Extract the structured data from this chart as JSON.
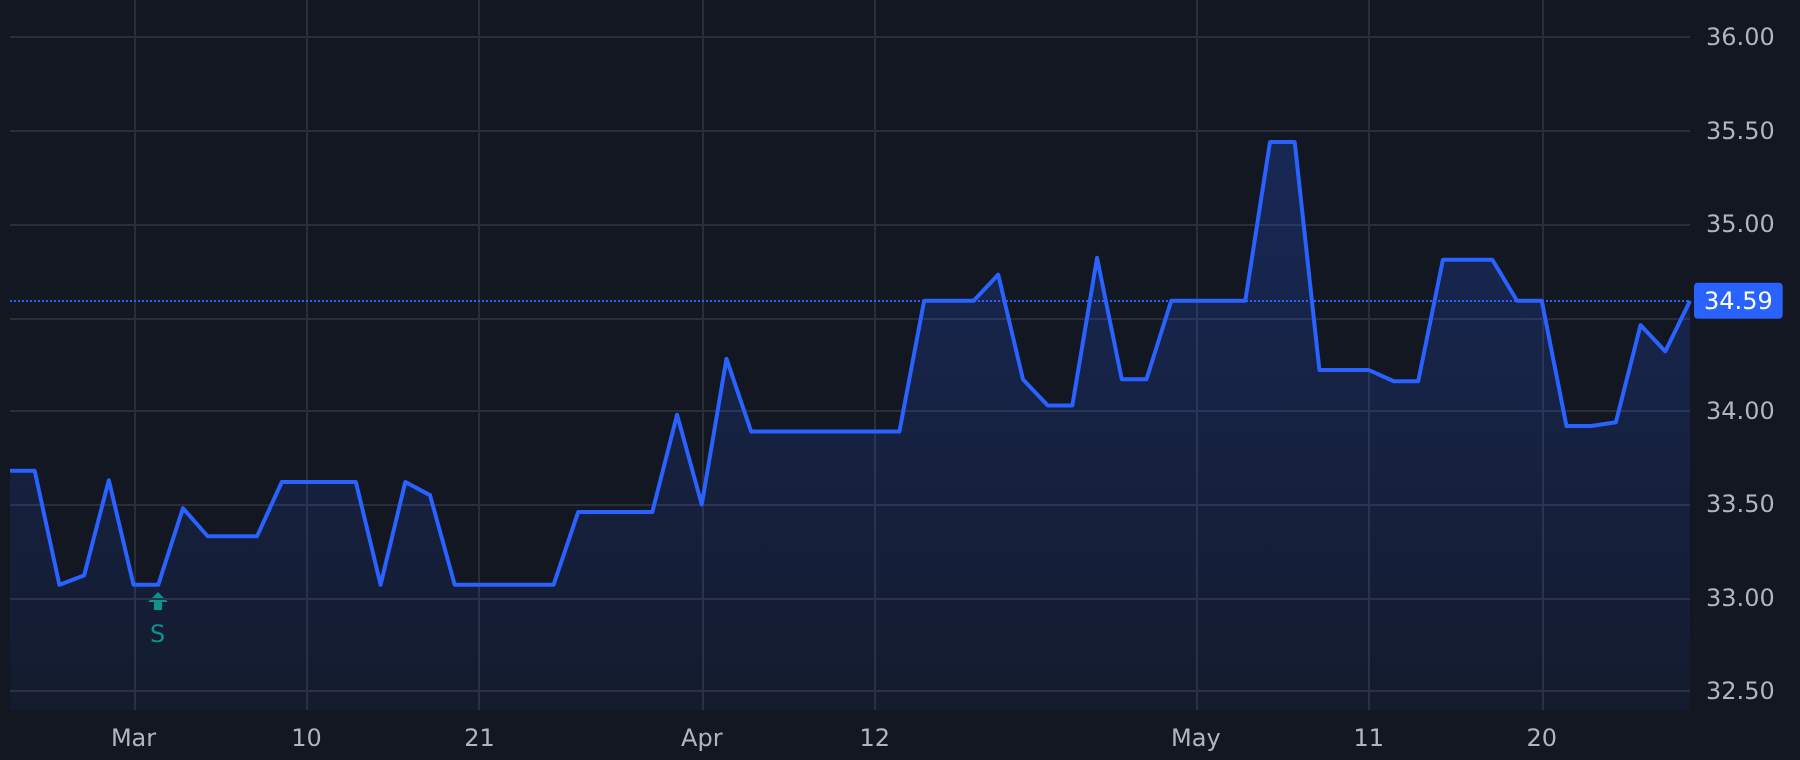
{
  "chart_data": {
    "type": "area",
    "categories": [
      null,
      null,
      null,
      null,
      null,
      "Mar",
      null,
      null,
      null,
      null,
      null,
      null,
      "10",
      null,
      null,
      null,
      null,
      null,
      null,
      "21",
      null,
      null,
      null,
      null,
      null,
      null,
      null,
      null,
      "Apr",
      null,
      null,
      null,
      null,
      null,
      null,
      "12",
      null,
      null,
      null,
      null,
      null,
      null,
      null,
      null,
      null,
      null,
      null,
      null,
      "May",
      null,
      null,
      null,
      null,
      null,
      null,
      "11",
      null,
      null,
      null,
      null,
      null,
      null,
      "20",
      null,
      null,
      null,
      null,
      null,
      null
    ],
    "series": [
      {
        "color": "#2962ff",
        "values": [
          33.68,
          33.68,
          33.07,
          33.12,
          33.63,
          33.07,
          33.07,
          33.48,
          33.33,
          33.33,
          33.33,
          33.62,
          33.62,
          33.62,
          33.62,
          33.07,
          33.62,
          33.55,
          33.07,
          33.07,
          33.07,
          33.07,
          33.07,
          33.46,
          33.46,
          33.46,
          33.46,
          33.98,
          33.5,
          34.28,
          33.89,
          33.89,
          33.89,
          33.89,
          33.89,
          33.89,
          33.89,
          34.59,
          34.59,
          34.59,
          34.73,
          34.17,
          34.03,
          34.03,
          34.82,
          34.17,
          34.17,
          34.59,
          34.59,
          34.59,
          34.59,
          35.44,
          35.44,
          34.22,
          34.22,
          34.22,
          34.16,
          34.16,
          34.81,
          34.81,
          34.81,
          34.59,
          34.59,
          33.92,
          33.92,
          33.94,
          34.46,
          34.32,
          34.59
        ]
      }
    ],
    "ylim": [
      32.4,
      36.2
    ],
    "yticks": [
      {
        "value": 32.5,
        "label": "32.50"
      },
      {
        "value": 33,
        "label": "33.00"
      },
      {
        "value": 33.5,
        "label": "33.50"
      },
      {
        "value": 34,
        "label": "34.00"
      },
      {
        "value": 34.5,
        "label": null
      },
      {
        "value": 35,
        "label": "35.00"
      },
      {
        "value": 35.5,
        "label": "35.50"
      },
      {
        "value": 36,
        "label": "36.00"
      }
    ],
    "ref_lines": [
      {
        "axis": "y",
        "value": 34.59,
        "label": "34.59",
        "color": "#2962ff",
        "line_style": "dotted"
      }
    ],
    "annotations": [
      "S"
    ],
    "grid": true,
    "marker": "none",
    "line_style": "solid"
  }
}
